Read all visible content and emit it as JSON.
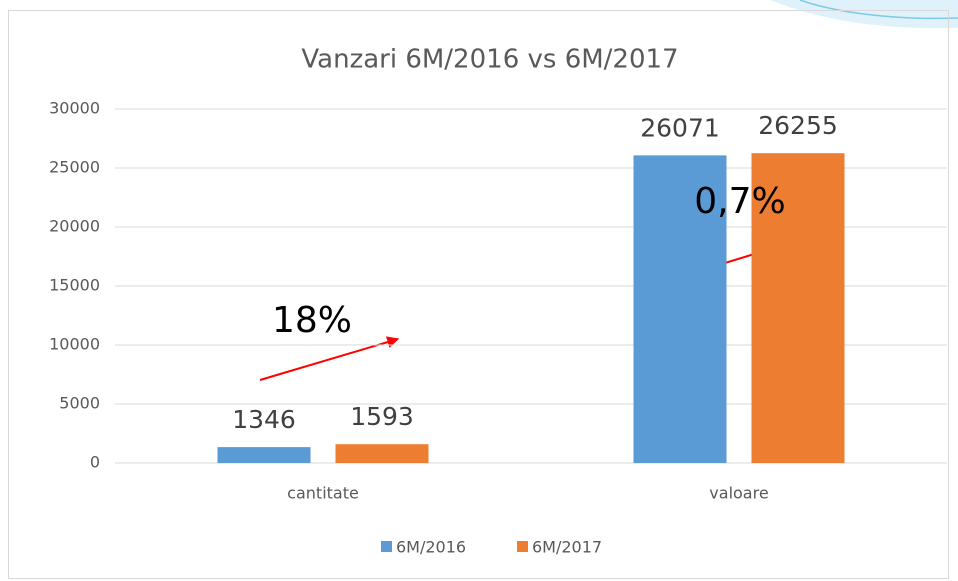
{
  "chart_data": {
    "type": "bar",
    "title": "Vanzari 6M/2016 vs 6M/2017",
    "categories": [
      "cantitate",
      "valoare"
    ],
    "series": [
      {
        "name": "6M/2016",
        "color": "#5b9bd5",
        "values": [
          1346,
          26071
        ]
      },
      {
        "name": "6M/2017",
        "color": "#ed7d31",
        "values": [
          1593,
          26255
        ]
      }
    ],
    "ylim": [
      0,
      30000
    ],
    "yticks": [
      0,
      5000,
      10000,
      15000,
      20000,
      25000,
      30000
    ],
    "grid": true,
    "legend": "bottom",
    "annotations": [
      "18%",
      "0,7%"
    ]
  }
}
